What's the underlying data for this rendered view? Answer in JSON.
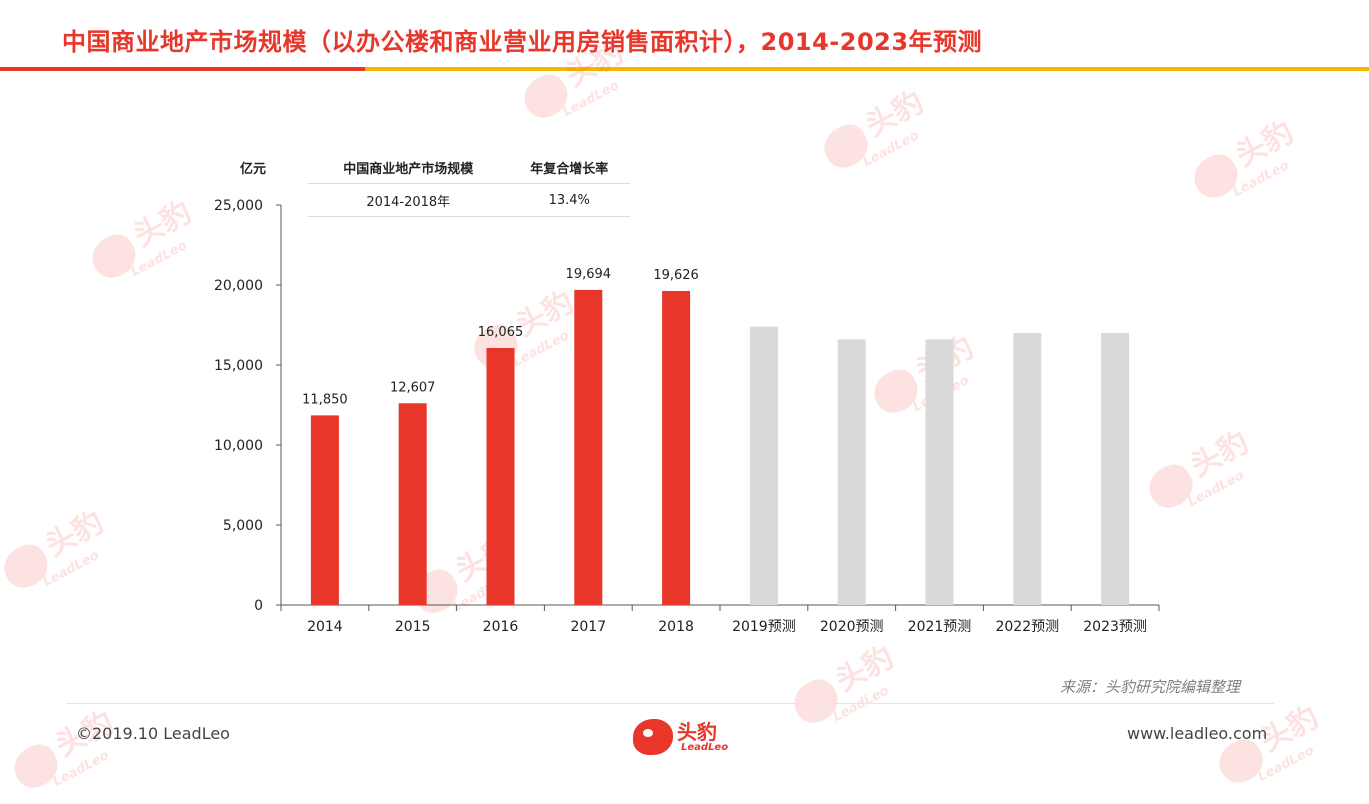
{
  "header": {
    "title": "中国商业地产市场规模（以办公楼和商业营业用房销售面积计），2014-2023年预测"
  },
  "colors": {
    "accent_red": "#e8362a",
    "accent_yellow": "#f5b800",
    "forecast_gray": "#d9d9d9"
  },
  "chart_data": {
    "type": "bar",
    "ylabel": "亿元",
    "ylim": [
      0,
      25000
    ],
    "yticks": [
      "0",
      "5,000",
      "10,000",
      "15,000",
      "20,000",
      "25,000"
    ],
    "ytick_values": [
      0,
      5000,
      10000,
      15000,
      20000,
      25000
    ],
    "categories": [
      "2014",
      "2015",
      "2016",
      "2017",
      "2018",
      "2019预测",
      "2020预测",
      "2021预测",
      "2022预测",
      "2023预测"
    ],
    "values": [
      11850,
      12607,
      16065,
      19694,
      19626,
      17400,
      16600,
      16600,
      17000,
      17000
    ],
    "data_labels": [
      "11,850",
      "12,607",
      "16,065",
      "19,694",
      "19,626",
      "",
      "",
      "",
      "",
      ""
    ],
    "forecast": [
      false,
      false,
      false,
      false,
      false,
      true,
      true,
      true,
      true,
      true
    ],
    "grid": false
  },
  "cagr_table": {
    "headers": [
      "中国商业地产市场规模",
      "年复合增长率"
    ],
    "rows": [
      [
        "2014-2018年",
        "13.4%"
      ]
    ]
  },
  "footer": {
    "source": "来源：头豹研究院编辑整理",
    "copyright": "©2019.10 LeadLeo",
    "website": "www.leadleo.com"
  },
  "brand": {
    "logo_cn": "头豹",
    "logo_en": "LeadLeo"
  }
}
